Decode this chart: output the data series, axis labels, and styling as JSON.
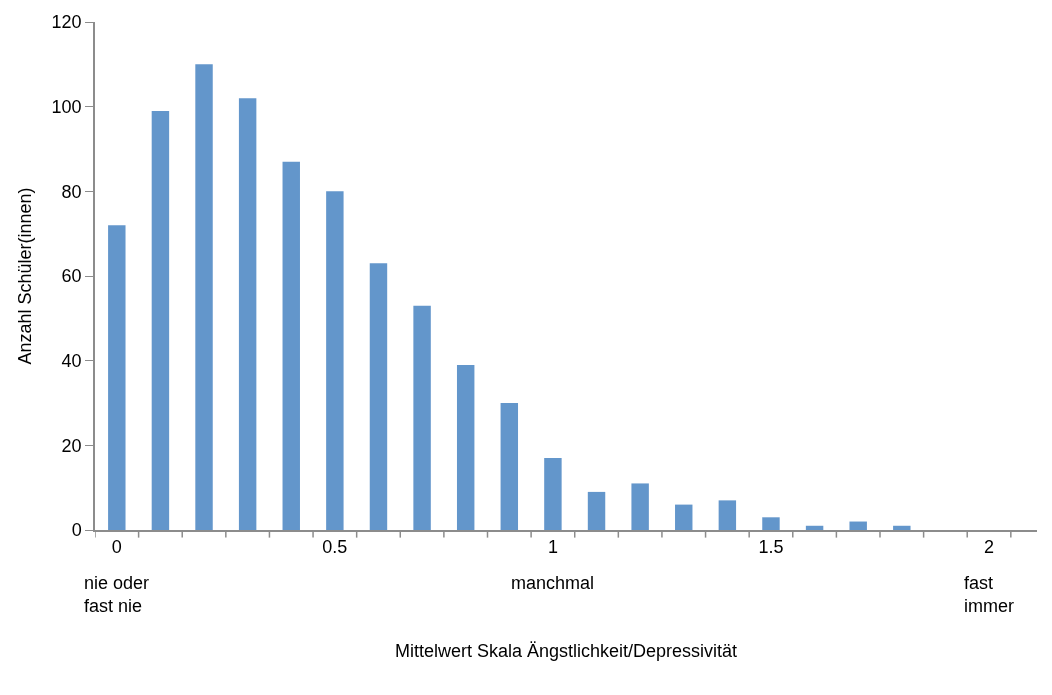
{
  "chart_data": {
    "type": "bar",
    "xlabel": "Mittelwert Skala Ängstlichkeit/Depressivität",
    "ylabel": "Anzahl Schüler(innen)",
    "categories": [
      "0",
      null,
      null,
      null,
      null,
      "0.5",
      null,
      null,
      null,
      null,
      "1",
      null,
      null,
      null,
      null,
      "1.5",
      null,
      null,
      null,
      null,
      "2"
    ],
    "values": [
      72,
      99,
      110,
      102,
      87,
      80,
      63,
      53,
      39,
      30,
      17,
      9,
      11,
      6,
      7,
      3,
      1,
      2,
      1,
      0,
      0
    ],
    "color": "#6396cb",
    "ylim": [
      0,
      120
    ],
    "yticks": [
      0,
      20,
      40,
      60,
      80,
      100,
      120
    ],
    "legend": false,
    "annotations": [
      "nie oder\nfast nie",
      "manchmal",
      "fast\nimmer"
    ]
  }
}
